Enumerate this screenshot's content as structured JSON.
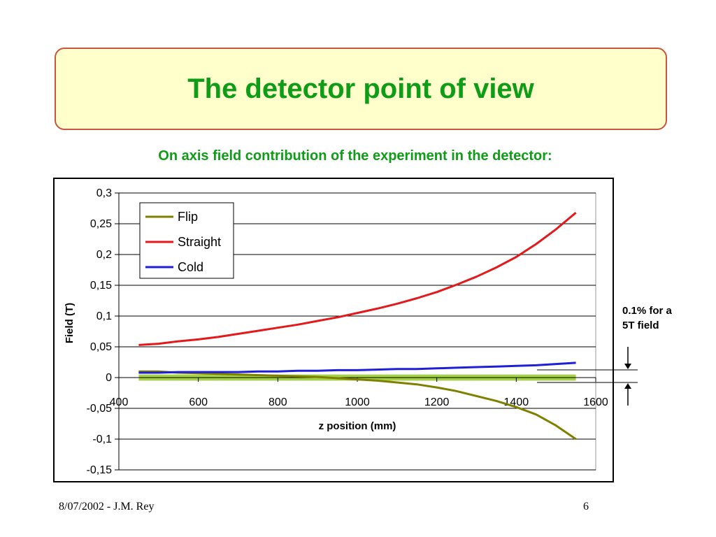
{
  "slide": {
    "title": "The detector point of view",
    "subtitle": "On axis field contribution of the experiment in the detector:",
    "annotation_line1": "0.1% for a",
    "annotation_line2": "5T field",
    "footer_left": "8/07/2002 - J.M. Rey",
    "page_number": "6"
  },
  "colors": {
    "title": "#0f9d17",
    "title_box_fill": "#ffffcc",
    "title_box_border": "#c8553d",
    "plot_area": "#ffffff",
    "band": "#99cc33"
  },
  "chart_data": {
    "type": "line",
    "title": "",
    "xlabel": "z position (mm)",
    "ylabel": "Field (T)",
    "xlim": [
      400,
      1600
    ],
    "ylim": [
      -0.15,
      0.3
    ],
    "x_ticks": [
      "400",
      "600",
      "800",
      "1000",
      "1200",
      "1400",
      "1600"
    ],
    "y_ticks": [
      "0,3",
      "0,25",
      "0,2",
      "0,15",
      "0,1",
      "0,05",
      "0",
      "-0,05",
      "-0,1",
      "-0,15"
    ],
    "grid": "horizontal major gridlines",
    "legend_position": "top-left",
    "band": {
      "y_min": -0.005,
      "y_max": 0.005,
      "x_min": 450,
      "x_max": 1550
    },
    "series": [
      {
        "name": "Flip",
        "color": "#808000",
        "x": [
          450,
          500,
          550,
          600,
          650,
          700,
          750,
          800,
          850,
          900,
          950,
          1000,
          1050,
          1100,
          1150,
          1200,
          1250,
          1300,
          1350,
          1400,
          1450,
          1500,
          1550
        ],
        "y": [
          0.01,
          0.01,
          0.008,
          0.007,
          0.006,
          0.005,
          0.004,
          0.003,
          0.002,
          0.001,
          -0.001,
          -0.003,
          -0.005,
          -0.008,
          -0.011,
          -0.016,
          -0.022,
          -0.03,
          -0.038,
          -0.048,
          -0.06,
          -0.078,
          -0.1
        ]
      },
      {
        "name": "Straight",
        "color": "#e31a1c",
        "x": [
          450,
          500,
          550,
          600,
          650,
          700,
          750,
          800,
          850,
          900,
          950,
          1000,
          1050,
          1100,
          1150,
          1200,
          1250,
          1300,
          1350,
          1400,
          1450,
          1500,
          1550
        ],
        "y": [
          0.053,
          0.055,
          0.059,
          0.062,
          0.066,
          0.071,
          0.076,
          0.081,
          0.086,
          0.092,
          0.098,
          0.105,
          0.112,
          0.12,
          0.129,
          0.139,
          0.151,
          0.164,
          0.179,
          0.196,
          0.217,
          0.241,
          0.268
        ]
      },
      {
        "name": "Cold",
        "color": "#1f1fd6",
        "x": [
          450,
          500,
          550,
          600,
          650,
          700,
          750,
          800,
          850,
          900,
          950,
          1000,
          1050,
          1100,
          1150,
          1200,
          1250,
          1300,
          1350,
          1400,
          1450,
          1500,
          1550
        ],
        "y": [
          0.008,
          0.008,
          0.009,
          0.009,
          0.009,
          0.009,
          0.01,
          0.01,
          0.011,
          0.011,
          0.012,
          0.012,
          0.013,
          0.014,
          0.014,
          0.015,
          0.016,
          0.017,
          0.018,
          0.019,
          0.02,
          0.022,
          0.024
        ]
      }
    ]
  }
}
